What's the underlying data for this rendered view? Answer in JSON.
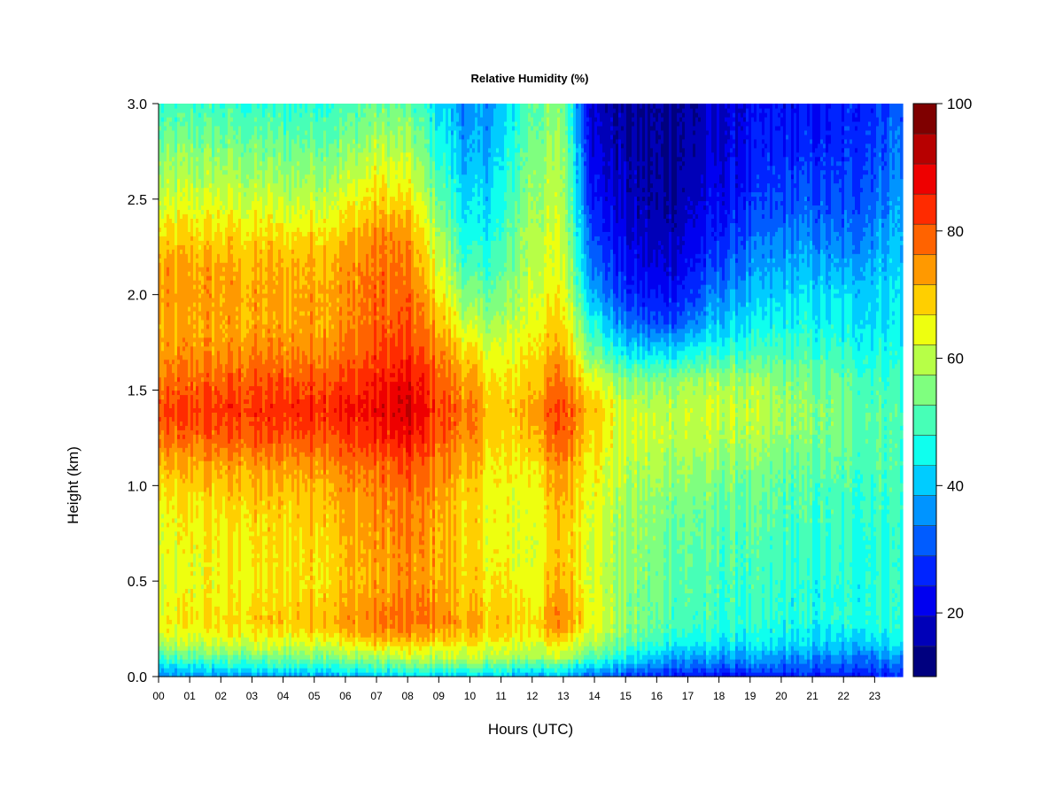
{
  "chart_data": {
    "type": "heatmap",
    "title": "Relative Humidity (%)",
    "xlabel": "Hours (UTC)",
    "ylabel": "Height (km)",
    "x_ticks": [
      "00",
      "01",
      "02",
      "03",
      "04",
      "05",
      "06",
      "07",
      "08",
      "09",
      "10",
      "11",
      "12",
      "13",
      "14",
      "15",
      "16",
      "17",
      "18",
      "19",
      "20",
      "21",
      "22",
      "23"
    ],
    "xlim": [
      0,
      23.9
    ],
    "y_ticks": [
      "0.0",
      "0.5",
      "1.0",
      "1.5",
      "2.0",
      "2.5",
      "3.0"
    ],
    "ylim": [
      0,
      3.0
    ],
    "colorbar": {
      "min": 10,
      "max": 100,
      "step": 5,
      "tick_values": [
        20,
        40,
        60,
        80,
        100
      ],
      "tick_labels": [
        "20",
        "40",
        "60",
        "80",
        "100"
      ],
      "colors": [
        "#00007F",
        "#0000B8",
        "#0000F0",
        "#0024FF",
        "#005CFF",
        "#0094FF",
        "#00CCFF",
        "#0FFFEE",
        "#47FFB7",
        "#7FFF7F",
        "#B7FF47",
        "#EEFF0F",
        "#FFCF00",
        "#FF9900",
        "#FF6300",
        "#FF2B00",
        "#EE0000",
        "#B70000",
        "#7F0000"
      ]
    },
    "heights_km": [
      0.0,
      0.05,
      0.1,
      0.15,
      0.2,
      0.25,
      0.3,
      0.4,
      0.5,
      0.7,
      0.9,
      1.1,
      1.25,
      1.4,
      1.55,
      1.7,
      1.85,
      2.0,
      2.15,
      2.3,
      2.5,
      2.75,
      3.0
    ],
    "hours": [
      0,
      1,
      2,
      3,
      4,
      5,
      6,
      7,
      8,
      9,
      10,
      11,
      12,
      13,
      14,
      15,
      16,
      17,
      18,
      19,
      20,
      21,
      22,
      23,
      23.9
    ],
    "rh_percent": [
      [
        36,
        36,
        37,
        37,
        38,
        40,
        41,
        41,
        42,
        43,
        42,
        41,
        39,
        40,
        34,
        29,
        27,
        25,
        24,
        24,
        25,
        26,
        26,
        26,
        27
      ],
      [
        42,
        45,
        46,
        47,
        48,
        49,
        50,
        51,
        53,
        53,
        53,
        52,
        50,
        50,
        44,
        38,
        34,
        33,
        32,
        33,
        32,
        32,
        31,
        32,
        33
      ],
      [
        50,
        53,
        54,
        55,
        56,
        57,
        58,
        60,
        63,
        63,
        63,
        62,
        60,
        63,
        54,
        46,
        41,
        38,
        38,
        38,
        37,
        36,
        35,
        36,
        38
      ],
      [
        58,
        60,
        61,
        62,
        63,
        64,
        65,
        68,
        68,
        68,
        67,
        65,
        64,
        67,
        60,
        51,
        47,
        44,
        43,
        43,
        42,
        41,
        40,
        42,
        44
      ],
      [
        62,
        65,
        66,
        67,
        67,
        69,
        71,
        75,
        75,
        74,
        72,
        69,
        68,
        72,
        64,
        56,
        51,
        48,
        47,
        46,
        45,
        44,
        44,
        46,
        48
      ],
      [
        66,
        68,
        69,
        70,
        70,
        72,
        75,
        78,
        79,
        77,
        74,
        72,
        70,
        78,
        66,
        58,
        54,
        51,
        49,
        48,
        47,
        46,
        46,
        48,
        49
      ],
      [
        67,
        70,
        71,
        72,
        73,
        75,
        77,
        80,
        81,
        80,
        75,
        73,
        71,
        80,
        68,
        59,
        55,
        52,
        50,
        50,
        49,
        48,
        48,
        50,
        50
      ],
      [
        65,
        68,
        69,
        70,
        71,
        73,
        75,
        78,
        80,
        78,
        73,
        71,
        69,
        78,
        67,
        58,
        55,
        53,
        51,
        50,
        49,
        48,
        48,
        50,
        50
      ],
      [
        64,
        67,
        68,
        69,
        70,
        71,
        73,
        76,
        78,
        76,
        72,
        69,
        67,
        75,
        66,
        58,
        56,
        54,
        52,
        51,
        50,
        49,
        49,
        50,
        50
      ],
      [
        65,
        68,
        69,
        70,
        71,
        72,
        74,
        77,
        79,
        76,
        71,
        67,
        66,
        74,
        66,
        59,
        57,
        55,
        53,
        52,
        51,
        50,
        50,
        50,
        50
      ],
      [
        67,
        70,
        71,
        72,
        72,
        74,
        76,
        78,
        80,
        77,
        71,
        67,
        67,
        75,
        67,
        60,
        58,
        57,
        55,
        54,
        53,
        52,
        51,
        52,
        52
      ],
      [
        73,
        75,
        76,
        76,
        77,
        78,
        80,
        82,
        84,
        80,
        74,
        68,
        70,
        79,
        69,
        62,
        61,
        60,
        58,
        57,
        55,
        54,
        53,
        53,
        53
      ],
      [
        80,
        82,
        83,
        84,
        84,
        85,
        86,
        88,
        90,
        84,
        78,
        70,
        75,
        84,
        72,
        64,
        64,
        63,
        62,
        61,
        58,
        57,
        55,
        54,
        53
      ],
      [
        84,
        86,
        87,
        87,
        88,
        89,
        90,
        92,
        95,
        86,
        80,
        71,
        77,
        86,
        74,
        63,
        63,
        64,
        64,
        63,
        60,
        58,
        56,
        54,
        53
      ],
      [
        80,
        82,
        83,
        84,
        84,
        85,
        86,
        89,
        91,
        84,
        76,
        68,
        74,
        81,
        68,
        57,
        58,
        60,
        61,
        60,
        58,
        56,
        54,
        52,
        51
      ],
      [
        76,
        78,
        78,
        79,
        79,
        80,
        81,
        85,
        87,
        80,
        70,
        65,
        71,
        76,
        56,
        45,
        44,
        47,
        50,
        51,
        52,
        51,
        50,
        49,
        48
      ],
      [
        75,
        76,
        76,
        76,
        76,
        77,
        78,
        83,
        84,
        75,
        63,
        60,
        68,
        72,
        48,
        35,
        30,
        35,
        42,
        45,
        47,
        47,
        46,
        46,
        46
      ],
      [
        76,
        77,
        77,
        76,
        76,
        77,
        78,
        82,
        82,
        70,
        56,
        56,
        66,
        68,
        40,
        28,
        24,
        28,
        36,
        40,
        43,
        44,
        43,
        44,
        45
      ],
      [
        76,
        76,
        76,
        75,
        75,
        76,
        77,
        81,
        80,
        66,
        50,
        53,
        64,
        66,
        34,
        24,
        20,
        24,
        31,
        36,
        39,
        40,
        38,
        42,
        44
      ],
      [
        70,
        72,
        72,
        71,
        71,
        72,
        74,
        79,
        78,
        62,
        46,
        50,
        63,
        64,
        30,
        21,
        17,
        21,
        27,
        32,
        35,
        36,
        34,
        38,
        42
      ],
      [
        63,
        65,
        65,
        64,
        63,
        64,
        66,
        72,
        70,
        56,
        42,
        47,
        61,
        62,
        25,
        18,
        15,
        18,
        23,
        27,
        30,
        31,
        30,
        34,
        39
      ],
      [
        57,
        58,
        58,
        57,
        56,
        57,
        58,
        63,
        62,
        50,
        38,
        44,
        58,
        60,
        21,
        16,
        14,
        16,
        20,
        24,
        27,
        27,
        27,
        31,
        36
      ],
      [
        50,
        51,
        51,
        50,
        50,
        51,
        52,
        55,
        54,
        45,
        35,
        40,
        55,
        57,
        18,
        15,
        14,
        15,
        19,
        22,
        24,
        24,
        26,
        29,
        33
      ]
    ]
  }
}
